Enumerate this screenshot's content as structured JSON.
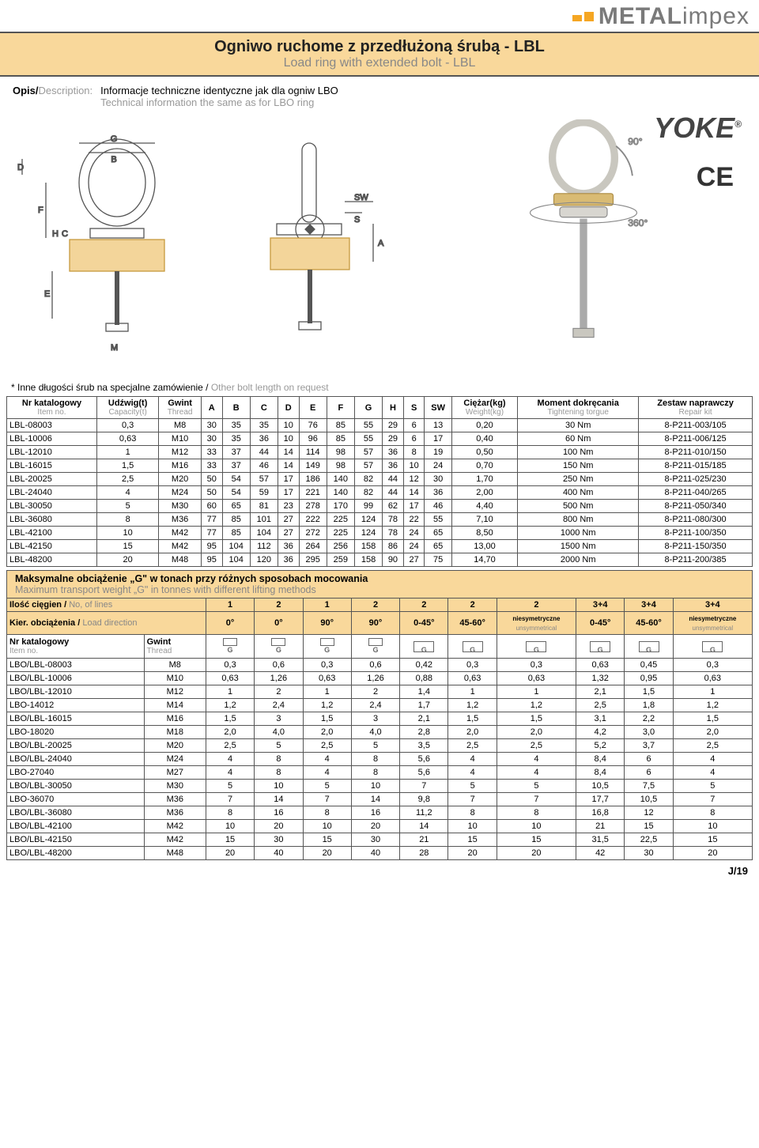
{
  "brand": {
    "name_a": "METAL",
    "name_b": "impex"
  },
  "title": {
    "pl": "Ogniwo ruchome z przedłużoną śrubą - LBL",
    "en": "Load ring with extended bolt - LBL"
  },
  "desc": {
    "label_pl": "Opis/",
    "label_en": "Description:",
    "body_pl": "Informacje techniczne identyczne jak dla ogniw LBO",
    "body_en": "Technical information the same as for LBO ring"
  },
  "yoke": "YOKE",
  "yoke_r": "®",
  "ce": "CE",
  "ang90": "90°",
  "ang360": "360°",
  "dim_labels": [
    "G",
    "B",
    "D",
    "F",
    "H",
    "C",
    "E",
    "M",
    "SW",
    "S",
    "A"
  ],
  "note": {
    "pl": "* Inne długości śrub na specjalne zamówienie / ",
    "en": "Other bolt length on request"
  },
  "table1": {
    "headers": [
      {
        "pl": "Nr katalogowy",
        "en": "Item no."
      },
      {
        "pl": "Udźwig(t)",
        "en": "Capacity(t)"
      },
      {
        "pl": "Gwint",
        "en": "Thread"
      },
      {
        "pl": "A"
      },
      {
        "pl": "B"
      },
      {
        "pl": "C"
      },
      {
        "pl": "D"
      },
      {
        "pl": "E"
      },
      {
        "pl": "F"
      },
      {
        "pl": "G"
      },
      {
        "pl": "H"
      },
      {
        "pl": "S"
      },
      {
        "pl": "SW"
      },
      {
        "pl": "Ciężar(kg)",
        "en": "Weight(kg)"
      },
      {
        "pl": "Moment dokręcania",
        "en": "Tightening torgue"
      },
      {
        "pl": "Zestaw naprawczy",
        "en": "Repair kit"
      }
    ],
    "rows": [
      [
        "LBL-08003",
        "0,3",
        "M8",
        "30",
        "35",
        "35",
        "10",
        "76",
        "85",
        "55",
        "29",
        "6",
        "13",
        "0,20",
        "30 Nm",
        "8-P211-003/105"
      ],
      [
        "LBL-10006",
        "0,63",
        "M10",
        "30",
        "35",
        "36",
        "10",
        "96",
        "85",
        "55",
        "29",
        "6",
        "17",
        "0,40",
        "60 Nm",
        "8-P211-006/125"
      ],
      [
        "LBL-12010",
        "1",
        "M12",
        "33",
        "37",
        "44",
        "14",
        "114",
        "98",
        "57",
        "36",
        "8",
        "19",
        "0,50",
        "100 Nm",
        "8-P211-010/150"
      ],
      [
        "LBL-16015",
        "1,5",
        "M16",
        "33",
        "37",
        "46",
        "14",
        "149",
        "98",
        "57",
        "36",
        "10",
        "24",
        "0,70",
        "150 Nm",
        "8-P211-015/185"
      ],
      [
        "LBL-20025",
        "2,5",
        "M20",
        "50",
        "54",
        "57",
        "17",
        "186",
        "140",
        "82",
        "44",
        "12",
        "30",
        "1,70",
        "250 Nm",
        "8-P211-025/230"
      ],
      [
        "LBL-24040",
        "4",
        "M24",
        "50",
        "54",
        "59",
        "17",
        "221",
        "140",
        "82",
        "44",
        "14",
        "36",
        "2,00",
        "400 Nm",
        "8-P211-040/265"
      ],
      [
        "LBL-30050",
        "5",
        "M30",
        "60",
        "65",
        "81",
        "23",
        "278",
        "170",
        "99",
        "62",
        "17",
        "46",
        "4,40",
        "500 Nm",
        "8-P211-050/340"
      ],
      [
        "LBL-36080",
        "8",
        "M36",
        "77",
        "85",
        "101",
        "27",
        "222",
        "225",
        "124",
        "78",
        "22",
        "55",
        "7,10",
        "800 Nm",
        "8-P211-080/300"
      ],
      [
        "LBL-42100",
        "10",
        "M42",
        "77",
        "85",
        "104",
        "27",
        "272",
        "225",
        "124",
        "78",
        "24",
        "65",
        "8,50",
        "1000 Nm",
        "8-P211-100/350"
      ],
      [
        "LBL-42150",
        "15",
        "M42",
        "95",
        "104",
        "112",
        "36",
        "264",
        "256",
        "158",
        "86",
        "24",
        "65",
        "13,00",
        "1500 Nm",
        "8-P211-150/350"
      ],
      [
        "LBL-48200",
        "20",
        "M48",
        "95",
        "104",
        "120",
        "36",
        "295",
        "259",
        "158",
        "90",
        "27",
        "75",
        "14,70",
        "2000 Nm",
        "8-P211-200/385"
      ]
    ]
  },
  "section2": {
    "title_pl": "Maksymalne obciążenie „G\" w tonach przy różnych sposobach mocowania",
    "title_en": "Maximum transport weight „G\" in tonnes with different lifting methods",
    "row1_label": "Ilość cięgien / ",
    "row1_label_en": "No, of lines",
    "row1_vals": [
      "1",
      "2",
      "1",
      "2",
      "2",
      "2",
      "2",
      "3+4",
      "3+4",
      "3+4"
    ],
    "row2_label": "Kier. obciążenia / ",
    "row2_label_en": "Load direction",
    "row2_vals": [
      "0°",
      "0°",
      "90°",
      "90°",
      "0-45°",
      "45-60°",
      "niesymetryczne\nunsymmetrical",
      "0-45°",
      "45-60°",
      "niesymetryczne\nunsymmetrical"
    ],
    "col_hdrs": [
      {
        "pl": "Nr katalogowy",
        "en": "Item no."
      },
      {
        "pl": "Gwint",
        "en": "Thread"
      }
    ],
    "rows": [
      [
        "LBO/LBL-08003",
        "M8",
        "0,3",
        "0,6",
        "0,3",
        "0,6",
        "0,42",
        "0,3",
        "0,3",
        "0,63",
        "0,45",
        "0,3"
      ],
      [
        "LBO/LBL-10006",
        "M10",
        "0,63",
        "1,26",
        "0,63",
        "1,26",
        "0,88",
        "0,63",
        "0,63",
        "1,32",
        "0,95",
        "0,63"
      ],
      [
        "LBO/LBL-12010",
        "M12",
        "1",
        "2",
        "1",
        "2",
        "1,4",
        "1",
        "1",
        "2,1",
        "1,5",
        "1"
      ],
      [
        "LBO-14012",
        "M14",
        "1,2",
        "2,4",
        "1,2",
        "2,4",
        "1,7",
        "1,2",
        "1,2",
        "2,5",
        "1,8",
        "1,2"
      ],
      [
        "LBO/LBL-16015",
        "M16",
        "1,5",
        "3",
        "1,5",
        "3",
        "2,1",
        "1,5",
        "1,5",
        "3,1",
        "2,2",
        "1,5"
      ],
      [
        "LBO-18020",
        "M18",
        "2,0",
        "4,0",
        "2,0",
        "4,0",
        "2,8",
        "2,0",
        "2,0",
        "4,2",
        "3,0",
        "2,0"
      ],
      [
        "LBO/LBL-20025",
        "M20",
        "2,5",
        "5",
        "2,5",
        "5",
        "3,5",
        "2,5",
        "2,5",
        "5,2",
        "3,7",
        "2,5"
      ],
      [
        "LBO/LBL-24040",
        "M24",
        "4",
        "8",
        "4",
        "8",
        "5,6",
        "4",
        "4",
        "8,4",
        "6",
        "4"
      ],
      [
        "LBO-27040",
        "M27",
        "4",
        "8",
        "4",
        "8",
        "5,6",
        "4",
        "4",
        "8,4",
        "6",
        "4"
      ],
      [
        "LBO/LBL-30050",
        "M30",
        "5",
        "10",
        "5",
        "10",
        "7",
        "5",
        "5",
        "10,5",
        "7,5",
        "5"
      ],
      [
        "LBO-36070",
        "M36",
        "7",
        "14",
        "7",
        "14",
        "9,8",
        "7",
        "7",
        "17,7",
        "10,5",
        "7"
      ],
      [
        "LBO/LBL-36080",
        "M36",
        "8",
        "16",
        "8",
        "16",
        "11,2",
        "8",
        "8",
        "16,8",
        "12",
        "8"
      ],
      [
        "LBO/LBL-42100",
        "M42",
        "10",
        "20",
        "10",
        "20",
        "14",
        "10",
        "10",
        "21",
        "15",
        "10"
      ],
      [
        "LBO/LBL-42150",
        "M42",
        "15",
        "30",
        "15",
        "30",
        "21",
        "15",
        "15",
        "31,5",
        "22,5",
        "15"
      ],
      [
        "LBO/LBL-48200",
        "M48",
        "20",
        "40",
        "20",
        "40",
        "28",
        "20",
        "20",
        "42",
        "30",
        "20"
      ]
    ]
  },
  "footer": "J/19",
  "colors": {
    "band": "#f9d89b",
    "border": "#555555",
    "grey": "#999999",
    "text": "#222222"
  }
}
